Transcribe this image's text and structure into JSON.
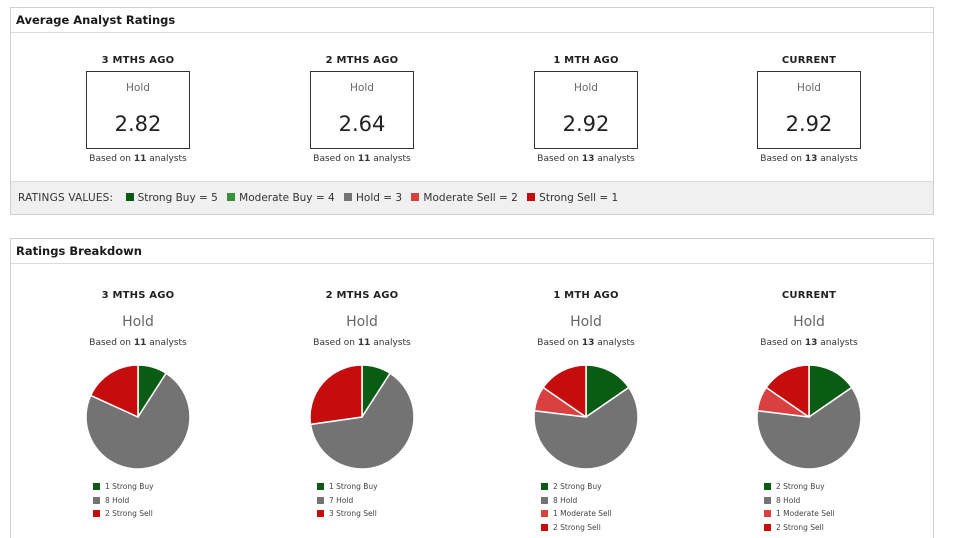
{
  "colors": {
    "strong_buy": "#0a5c15",
    "moderate_buy": "#3b8f3b",
    "hold": "#737373",
    "moderate_sell": "#d9403f",
    "strong_sell": "#c50d0d"
  },
  "avg_panel": {
    "title": "Average Analyst Ratings",
    "periods": [
      {
        "label": "3 MTHS AGO",
        "rating": "Hold",
        "value": "2.82",
        "based_prefix": "Based on ",
        "analysts": "11",
        "based_suffix": " analysts"
      },
      {
        "label": "2 MTHS AGO",
        "rating": "Hold",
        "value": "2.64",
        "based_prefix": "Based on ",
        "analysts": "11",
        "based_suffix": " analysts"
      },
      {
        "label": "1 MTH AGO",
        "rating": "Hold",
        "value": "2.92",
        "based_prefix": "Based on ",
        "analysts": "13",
        "based_suffix": " analysts"
      },
      {
        "label": "CURRENT",
        "rating": "Hold",
        "value": "2.92",
        "based_prefix": "Based on ",
        "analysts": "13",
        "based_suffix": " analysts"
      }
    ],
    "values_bar": {
      "label": "RATINGS VALUES:",
      "items": [
        {
          "text": "Strong Buy = 5",
          "color": "#0a5c15"
        },
        {
          "text": "Moderate Buy = 4",
          "color": "#3b8f3b"
        },
        {
          "text": "Hold = 3",
          "color": "#737373"
        },
        {
          "text": "Moderate Sell = 2",
          "color": "#d9403f"
        },
        {
          "text": "Strong Sell = 1",
          "color": "#c50d0d"
        }
      ]
    }
  },
  "breakdown_panel": {
    "title": "Ratings Breakdown",
    "periods": [
      {
        "label": "3 MTHS AGO",
        "rating": "Hold",
        "based_prefix": "Based on ",
        "analysts": "11",
        "based_suffix": " analysts",
        "legend": [
          "1 Strong Buy",
          "8 Hold",
          "2 Strong Sell"
        ]
      },
      {
        "label": "2 MTHS AGO",
        "rating": "Hold",
        "based_prefix": "Based on ",
        "analysts": "11",
        "based_suffix": " analysts",
        "legend": [
          "1 Strong Buy",
          "7 Hold",
          "3 Strong Sell"
        ]
      },
      {
        "label": "1 MTH AGO",
        "rating": "Hold",
        "based_prefix": "Based on ",
        "analysts": "13",
        "based_suffix": " analysts",
        "legend": [
          "2 Strong Buy",
          "8 Hold",
          "1 Moderate Sell",
          "2 Strong Sell"
        ]
      },
      {
        "label": "CURRENT",
        "rating": "Hold",
        "based_prefix": "Based on ",
        "analysts": "13",
        "based_suffix": " analysts",
        "legend": [
          "2 Strong Buy",
          "8 Hold",
          "1 Moderate Sell",
          "2 Strong Sell"
        ]
      }
    ]
  },
  "chart_data": [
    {
      "type": "pie",
      "categories": [
        "Strong Buy",
        "Hold",
        "Strong Sell"
      ],
      "values": [
        1,
        8,
        2
      ],
      "colors": [
        "#0a5c15",
        "#737373",
        "#c50d0d"
      ]
    },
    {
      "type": "pie",
      "categories": [
        "Strong Buy",
        "Hold",
        "Strong Sell"
      ],
      "values": [
        1,
        7,
        3
      ],
      "colors": [
        "#0a5c15",
        "#737373",
        "#c50d0d"
      ]
    },
    {
      "type": "pie",
      "categories": [
        "Strong Buy",
        "Hold",
        "Moderate Sell",
        "Strong Sell"
      ],
      "values": [
        2,
        8,
        1,
        2
      ],
      "colors": [
        "#0a5c15",
        "#737373",
        "#d9403f",
        "#c50d0d"
      ]
    },
    {
      "type": "pie",
      "categories": [
        "Strong Buy",
        "Hold",
        "Moderate Sell",
        "Strong Sell"
      ],
      "values": [
        2,
        8,
        1,
        2
      ],
      "colors": [
        "#0a5c15",
        "#737373",
        "#d9403f",
        "#c50d0d"
      ]
    }
  ]
}
